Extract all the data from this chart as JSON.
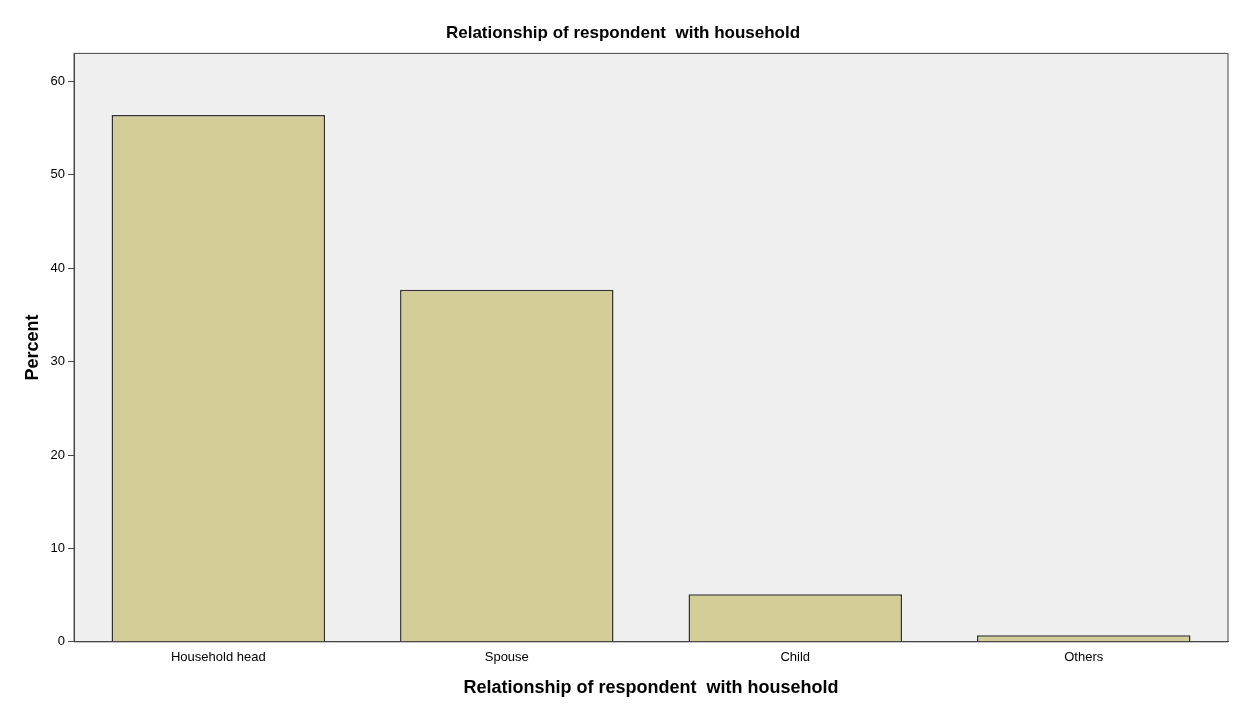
{
  "chart_data": {
    "type": "bar",
    "title": "Relationship of respondent  with household",
    "xlabel": "Relationship of respondent  with household",
    "ylabel": "Percent",
    "categories": [
      "Household head",
      "Spouse",
      "Child",
      "Others"
    ],
    "values": [
      56.4,
      37.7,
      5.1,
      0.7
    ],
    "color": "#d3ce97",
    "ylim": [
      0,
      63
    ],
    "yticks": [
      0,
      10,
      20,
      30,
      40,
      50,
      60
    ],
    "grid": false,
    "legend": false
  }
}
